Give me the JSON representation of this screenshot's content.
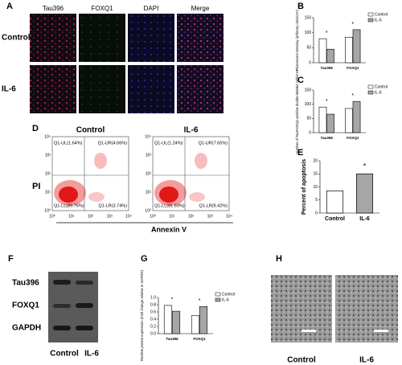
{
  "panels": {
    "a": {
      "label": "A",
      "columns": [
        "Tau396",
        "FOXQ1",
        "DAPI",
        "Merge"
      ],
      "rows": [
        "Control",
        "IL-6"
      ]
    },
    "d": {
      "label": "D",
      "y_label": "PI",
      "x_label": "Annexin V",
      "ticks": [
        "10⁰",
        "10¹",
        "10²",
        "10³",
        "10⁴"
      ],
      "plots": [
        {
          "title": "Control",
          "quadrants": [
            "Q1-UL(1.64%)",
            "Q1-UR(4.66%)",
            "Q1-LL(89.76%)",
            "Q1-LR(3.74%)"
          ]
        },
        {
          "title": "IL-6",
          "quadrants": [
            "Q1-UL(1.24%)",
            "Q1-UR(7.65%)",
            "Q1-LL(81.69%)",
            "Q1-LR(9.42%)"
          ]
        }
      ]
    },
    "f": {
      "label": "F",
      "rows": [
        "Tau396",
        "FOXQ1",
        "GAPDH"
      ],
      "columns": [
        "Control",
        "IL-6"
      ]
    },
    "h": {
      "label": "H",
      "columns": [
        "Control",
        "IL-6"
      ]
    }
  },
  "chart_data": [
    {
      "panel": "B",
      "type": "grouped_bar",
      "y_label": "Fluorescent intensity (arbitrary units/cm²)",
      "categories": [
        "Tau396",
        "FOXQ1"
      ],
      "series": [
        {
          "name": "Control",
          "color": "#ffffff",
          "values": [
            80,
            85
          ]
        },
        {
          "name": "IL-6",
          "color": "#a6a6a6",
          "values": [
            45,
            110
          ]
        }
      ],
      "annotations": [
        "*",
        "*"
      ],
      "ylim": [
        0,
        150
      ],
      "yticks": [
        0,
        50,
        100,
        150
      ]
    },
    {
      "panel": "C",
      "type": "grouped_bar",
      "y_label": "Number of Tau/FOXQ1-positive double-labeled cells/mm²",
      "categories": [
        "Tau396",
        "FOXQ1"
      ],
      "series": [
        {
          "name": "Control",
          "color": "#ffffff",
          "values": [
            90,
            85
          ]
        },
        {
          "name": "IL-6",
          "color": "#a6a6a6",
          "values": [
            65,
            110
          ]
        }
      ],
      "annotations": [
        "*",
        "*"
      ],
      "ylim": [
        0,
        150
      ],
      "yticks": [
        0,
        50,
        100,
        150
      ]
    },
    {
      "panel": "E",
      "type": "bar",
      "y_label": "Percent of apoptosis",
      "categories": [
        "Control",
        "IL-6"
      ],
      "values": [
        8.5,
        15
      ],
      "colors": [
        "#ffffff",
        "#a6a6a6"
      ],
      "annotations": [
        "*"
      ],
      "ylim": [
        0,
        20
      ],
      "yticks": [
        0,
        5,
        10,
        15,
        20
      ]
    },
    {
      "panel": "G",
      "type": "grouped_bar",
      "y_label": "Realtive protein expression (Fold change relative to GAPDH)",
      "categories": [
        "Tau396",
        "FOXQ1"
      ],
      "series": [
        {
          "name": "Control",
          "color": "#ffffff",
          "values": [
            0.78,
            0.5
          ]
        },
        {
          "name": "IL-6",
          "color": "#a6a6a6",
          "values": [
            0.62,
            0.75
          ]
        }
      ],
      "annotations": [
        "*",
        "*"
      ],
      "ylim": [
        0,
        1
      ],
      "yticks": [
        {
          "value": 0,
          "label": "0.0"
        },
        {
          "value": 0.2,
          "label": "0.2"
        },
        {
          "value": 0.4,
          "label": "0.4"
        },
        {
          "value": 0.6,
          "label": "0.6"
        },
        {
          "value": 0.8,
          "label": "0.8"
        },
        {
          "value": 1,
          "label": "1.0"
        }
      ]
    }
  ]
}
